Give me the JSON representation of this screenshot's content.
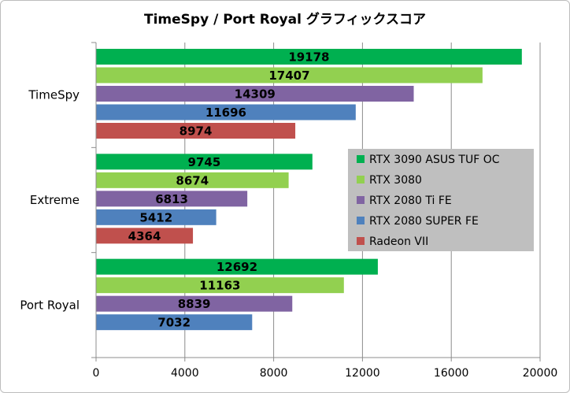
{
  "chart_data": {
    "type": "bar",
    "orientation": "horizontal",
    "title": "TimeSpy / Port Royal グラフィックスコア",
    "xlabel": "",
    "ylabel": "",
    "xlim": [
      0,
      20000
    ],
    "xticks": [
      0,
      4000,
      8000,
      12000,
      16000,
      20000
    ],
    "grid": true,
    "legend_position": "right-middle",
    "categories": [
      "TimeSpy",
      "Extreme",
      "Port Royal"
    ],
    "series": [
      {
        "name": "RTX 3090 ASUS TUF OC",
        "color": "#00b050",
        "values": [
          19178,
          9745,
          12692
        ]
      },
      {
        "name": "RTX 3080",
        "color": "#92d050",
        "values": [
          17407,
          8674,
          11163
        ]
      },
      {
        "name": "RTX 2080 Ti FE",
        "color": "#8064a2",
        "values": [
          14309,
          6813,
          8839
        ]
      },
      {
        "name": "RTX 2080 SUPER FE",
        "color": "#4f81bd",
        "values": [
          11696,
          5412,
          7032
        ]
      },
      {
        "name": "Radeon VII",
        "color": "#c0504d",
        "values": [
          8974,
          4364,
          null
        ]
      }
    ]
  }
}
